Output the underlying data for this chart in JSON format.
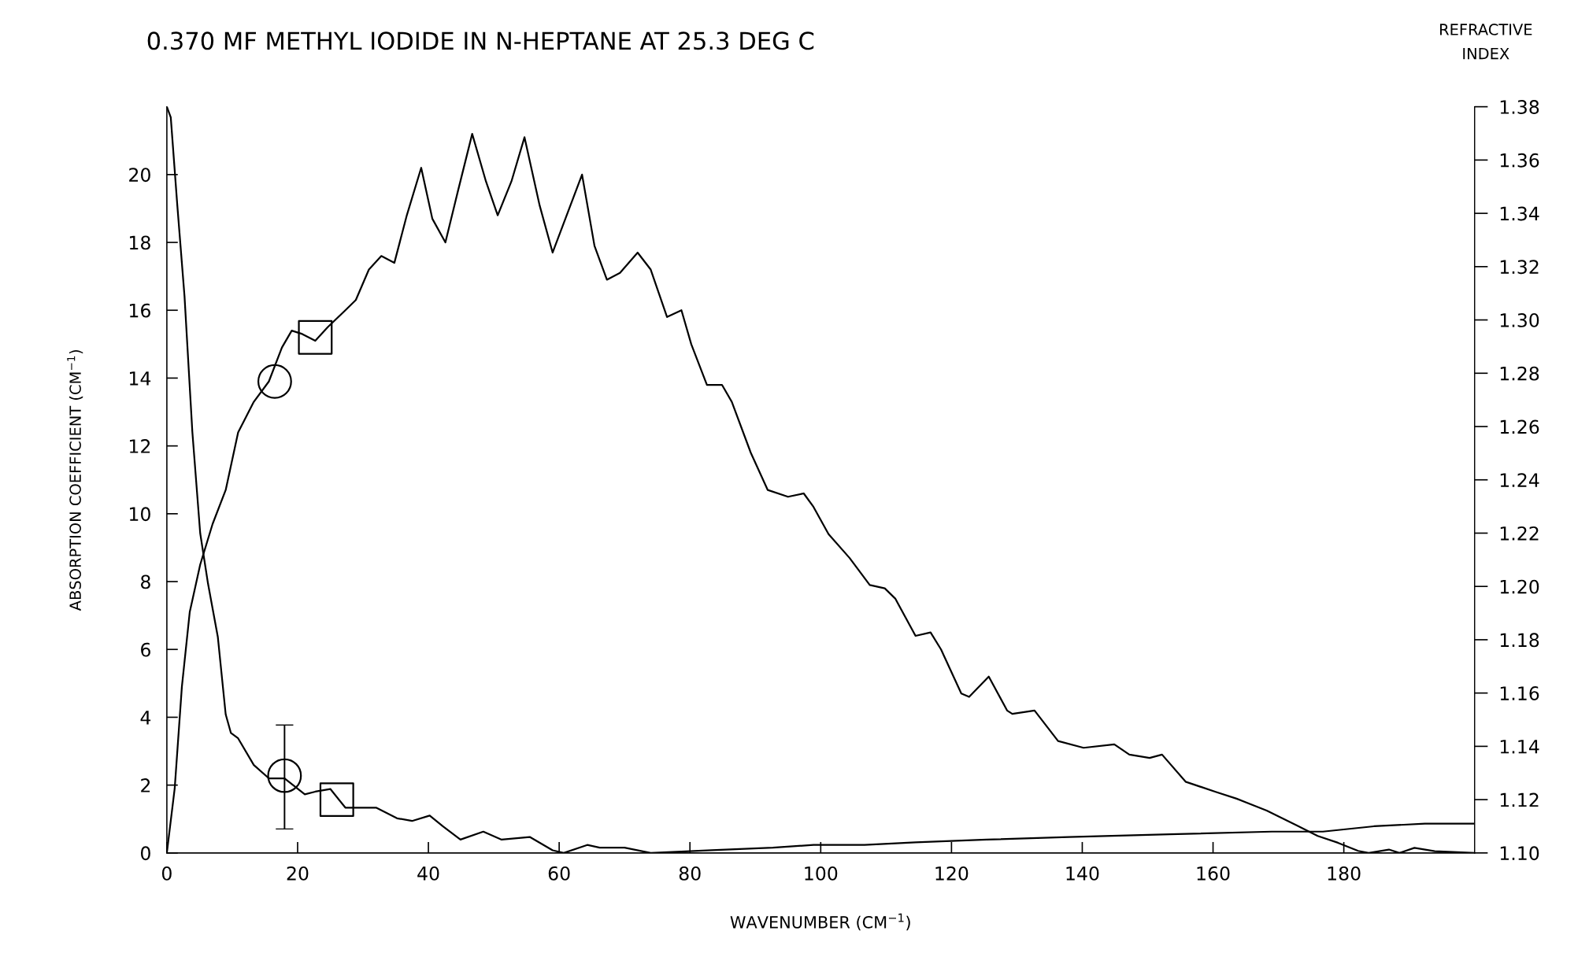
{
  "chart_data": {
    "type": "line",
    "title": "0.370 MF METHYL IODIDE IN N-HEPTANE AT 25.3 DEG C",
    "xlabel": "WAVENUMBER (CM$^{−1}$)",
    "ylabel": "ABSORPTION COEFFICIENT (CM$^{−1}$)",
    "y2label": "REFRACTIVE\nINDEX",
    "xlim": [
      0,
      200
    ],
    "xticks": [
      0,
      20,
      40,
      60,
      80,
      100,
      120,
      140,
      160,
      180
    ],
    "ylim": [
      0,
      22
    ],
    "yticks": [
      0,
      2,
      4,
      6,
      8,
      10,
      12,
      14,
      16,
      18,
      20
    ],
    "y2lim": [
      1.1,
      1.38
    ],
    "y2ticks": [
      {
        "value": 1.1,
        "label": "1.10"
      },
      {
        "value": 1.12,
        "label": "1.12"
      },
      {
        "value": 1.14,
        "label": "1.14"
      },
      {
        "value": 1.16,
        "label": "1.16"
      },
      {
        "value": 1.18,
        "label": "1.18"
      },
      {
        "value": 1.2,
        "label": "1.20"
      },
      {
        "value": 1.22,
        "label": "1.22"
      },
      {
        "value": 1.24,
        "label": "1.24"
      },
      {
        "value": 1.26,
        "label": "1.26"
      },
      {
        "value": 1.28,
        "label": "1.28"
      },
      {
        "value": 1.3,
        "label": "1.30"
      },
      {
        "value": 1.32,
        "label": "1.32"
      },
      {
        "value": 1.34,
        "label": "1.34"
      },
      {
        "value": 1.36,
        "label": "1.36"
      },
      {
        "value": 1.38,
        "label": "1.38"
      }
    ],
    "grid": false,
    "marker": "none",
    "line_style": "solid",
    "series": [
      {
        "color": "#000000",
        "x": [
          0,
          1.2,
          2.3,
          3.5,
          5.1,
          7,
          9,
          10.9,
          13.3,
          15.6,
          17.6,
          19.1,
          20.7,
          22.7,
          24.6,
          27.3,
          28.9,
          30.9,
          32.8,
          34.8,
          36.7,
          38.9,
          40.6,
          42.6,
          44.5,
          46.7,
          48.8,
          50.6,
          52.7,
          54.7,
          57,
          59,
          63.5,
          65.4,
          67.3,
          69.3,
          72,
          74,
          76.5,
          78.7,
          80.2,
          82.6,
          84.9,
          86.4,
          89.3,
          91.9,
          95,
          97.4,
          98.9,
          101.2,
          104.4,
          107.5,
          109.8,
          111.4,
          114.5,
          116.8,
          118.4,
          121.5,
          122.7,
          125.7,
          128.5,
          129.3,
          132.7,
          136.3,
          140.2,
          144.9,
          147.2,
          150.3,
          152.2,
          155.8,
          160.4,
          163.6,
          168.2,
          172.9,
          176,
          179.1,
          182.2,
          183.8,
          186.9,
          188.5,
          190.8,
          193.9,
          200
        ],
        "values": [
          0,
          1.9,
          4.9,
          7.1,
          8.5,
          9.7,
          10.7,
          12.4,
          13.3,
          13.9,
          14.9,
          15.4,
          15.3,
          15.1,
          15.5,
          16.0,
          16.3,
          17.2,
          17.6,
          17.4,
          18.8,
          20.2,
          18.7,
          18.0,
          19.5,
          21.2,
          19.8,
          18.8,
          19.8,
          21.1,
          19.1,
          17.7,
          20.0,
          17.9,
          16.9,
          17.1,
          17.7,
          17.2,
          15.8,
          16.0,
          15.0,
          13.8,
          13.8,
          13.3,
          11.8,
          10.7,
          10.5,
          10.6,
          10.2,
          9.4,
          8.7,
          7.9,
          7.8,
          7.5,
          6.4,
          6.5,
          6.0,
          4.7,
          4.6,
          5.2,
          4.2,
          4.1,
          4.2,
          3.3,
          3.1,
          3.2,
          2.9,
          2.8,
          2.9,
          2.1,
          1.8,
          1.6,
          1.25,
          0.8,
          0.5,
          0.3,
          0.06,
          0,
          0.1,
          0,
          0.15,
          0.05,
          0
        ]
      },
      {
        "axis": "y2",
        "color": "#000000",
        "x": [
          0,
          0.6,
          1.6,
          2.7,
          3.9,
          5.1,
          6.3,
          7.8,
          9,
          9.8,
          10.9,
          13.3,
          15.6,
          18,
          21.1,
          22.7,
          25,
          27.3,
          32,
          35.2,
          37.5,
          40.2,
          42.2,
          44.9,
          48.4,
          51.2,
          55.5,
          59,
          60.7,
          64.3,
          66.2,
          67.8,
          70,
          74,
          83.3,
          92.7,
          98.9,
          106.7,
          114.5,
          125.4,
          137.9,
          153.4,
          169,
          176.8,
          184.6,
          192.4,
          200
        ],
        "values": [
          1.38,
          1.376,
          1.343,
          1.309,
          1.258,
          1.22,
          1.201,
          1.181,
          1.152,
          1.145,
          1.143,
          1.133,
          1.128,
          1.128,
          1.122,
          1.123,
          1.124,
          1.117,
          1.117,
          1.113,
          1.112,
          1.114,
          1.11,
          1.105,
          1.108,
          1.105,
          1.106,
          1.101,
          1.1,
          1.103,
          1.102,
          1.102,
          1.102,
          1.1,
          1.101,
          1.102,
          1.103,
          1.103,
          1.104,
          1.105,
          1.106,
          1.107,
          1.108,
          1.108,
          1.11,
          1.111,
          1.111
        ]
      },
      {
        "type": "scatter",
        "marker": "circle",
        "color": "#000000",
        "x": [
          16.5
        ],
        "values": [
          13.9
        ]
      },
      {
        "type": "scatter",
        "marker": "square",
        "color": "#000000",
        "x": [
          22.7
        ],
        "values": [
          15.2
        ]
      },
      {
        "type": "scatter",
        "marker": "circle",
        "axis": "y2",
        "color": "#000000",
        "x": [
          18
        ],
        "values": [
          1.129
        ],
        "errors": [
          [
            1.109,
            1.148
          ]
        ]
      },
      {
        "type": "scatter",
        "marker": "square",
        "axis": "y2",
        "color": "#000000",
        "x": [
          26
        ],
        "values": [
          1.12
        ]
      }
    ]
  }
}
